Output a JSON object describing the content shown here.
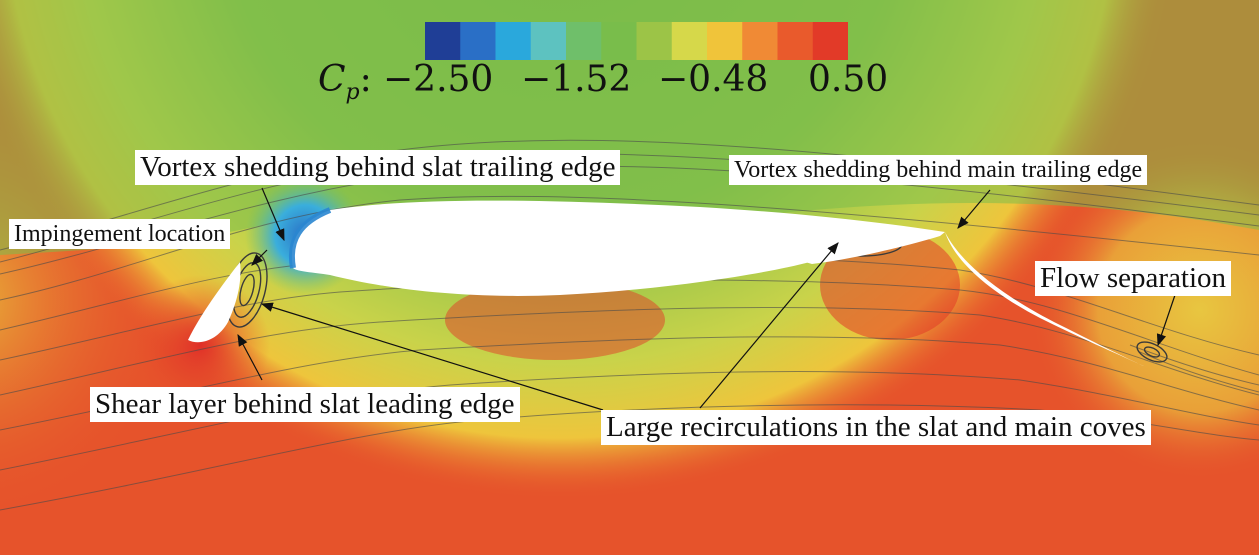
{
  "colorbar": {
    "variable": "C",
    "subscript": "p",
    "suffix": ":",
    "ticks": [
      "−2.50",
      "−1.52",
      "−0.48",
      "0.50"
    ],
    "colors": [
      "#1f3e96",
      "#2a6fc6",
      "#2aa8dc",
      "#5dc2c0",
      "#6fbf6a",
      "#79bd4b",
      "#9cc447",
      "#d6d84a",
      "#f0c43a",
      "#f08a35",
      "#e95a2c",
      "#e23a28"
    ]
  },
  "field_colors": {
    "base": "#e6532b",
    "upper": "#7fbe4a",
    "yellow": "#e3d64a",
    "suction": "#2a86d0",
    "stagnation": "#e53a2a",
    "streamline": "#4a4a4a"
  },
  "callouts": {
    "slat_te_vortex": "Vortex shedding behind slat trailing edge",
    "main_te_vortex": "Vortex shedding behind main trailing edge",
    "impingement": "Impingement location",
    "flow_separation": "Flow separation",
    "shear_layer": "Shear layer behind slat leading edge",
    "recirculations": "Large recirculations in the slat and main coves"
  }
}
